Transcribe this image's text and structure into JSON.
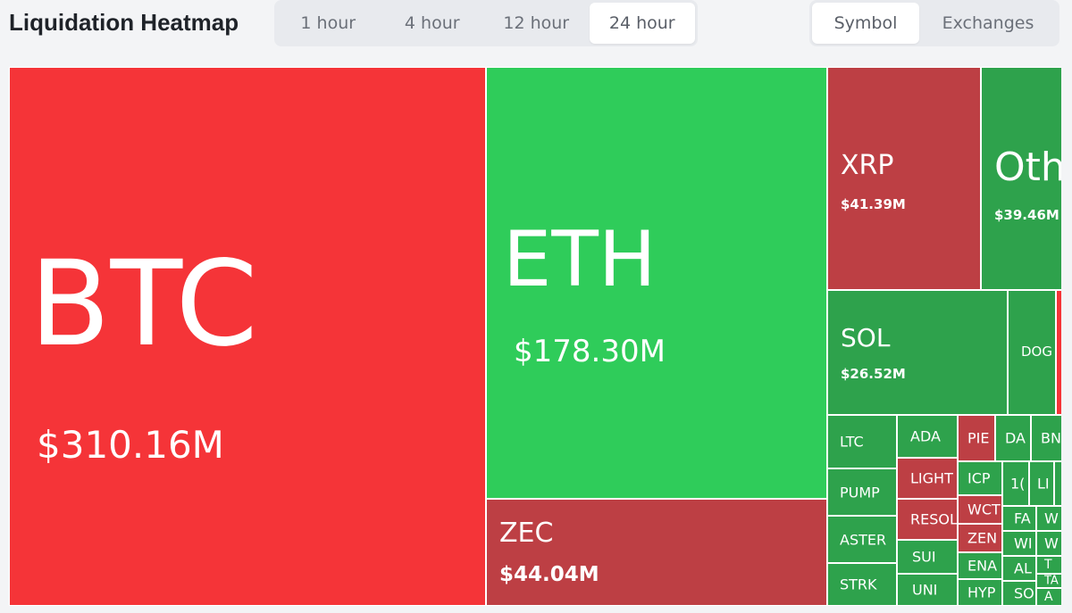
{
  "header": {
    "title": "Liquidation Heatmap",
    "time_options": [
      "1 hour",
      "4 hour",
      "12 hour",
      "24 hour"
    ],
    "time_selected": "24 hour",
    "view_options": [
      "Symbol",
      "Exchanges"
    ],
    "view_selected": "Symbol"
  },
  "colors": {
    "red": "#f53438",
    "dark_red": "#bd3f44",
    "green": "#2fcc5a",
    "dark_green": "#2ea24c"
  },
  "tiles": {
    "btc": {
      "symbol": "BTC",
      "value": "$310.16M"
    },
    "eth": {
      "symbol": "ETH",
      "value": "$178.30M"
    },
    "zec": {
      "symbol": "ZEC",
      "value": "$44.04M"
    },
    "xrp": {
      "symbol": "XRP",
      "value": "$41.39M"
    },
    "others": {
      "symbol": "Oth",
      "value": "$39.46M"
    },
    "sol": {
      "symbol": "SOL",
      "value": "$26.52M"
    },
    "doge": {
      "symbol": "DOG"
    },
    "ltc": {
      "symbol": "LTC"
    },
    "pump": {
      "symbol": "PUMP"
    },
    "aster": {
      "symbol": "ASTER"
    },
    "strk": {
      "symbol": "STRK"
    },
    "ada": {
      "symbol": "ADA"
    },
    "light": {
      "symbol": "LIGHT"
    },
    "resol": {
      "symbol": "RESOL"
    },
    "sui": {
      "symbol": "SUI"
    },
    "uni": {
      "symbol": "UNI"
    },
    "pie": {
      "symbol": "PIE"
    },
    "icp": {
      "symbol": "ICP"
    },
    "wct": {
      "symbol": "WCT"
    },
    "zen": {
      "symbol": "ZEN"
    },
    "ena": {
      "symbol": "ENA"
    },
    "hyp": {
      "symbol": "HYP"
    },
    "da": {
      "symbol": "DA"
    },
    "bn": {
      "symbol": "BN"
    },
    "ten": {
      "symbol": "1("
    },
    "li": {
      "symbol": "LI"
    },
    "fa": {
      "symbol": "FA"
    },
    "wi": {
      "symbol": "WI"
    },
    "al": {
      "symbol": "AL"
    },
    "so": {
      "symbol": "SO"
    },
    "w1": {
      "symbol": "W"
    },
    "w2": {
      "symbol": "W"
    },
    "t": {
      "symbol": "T"
    },
    "ta": {
      "symbol": "TA"
    },
    "a": {
      "symbol": "A"
    }
  }
}
